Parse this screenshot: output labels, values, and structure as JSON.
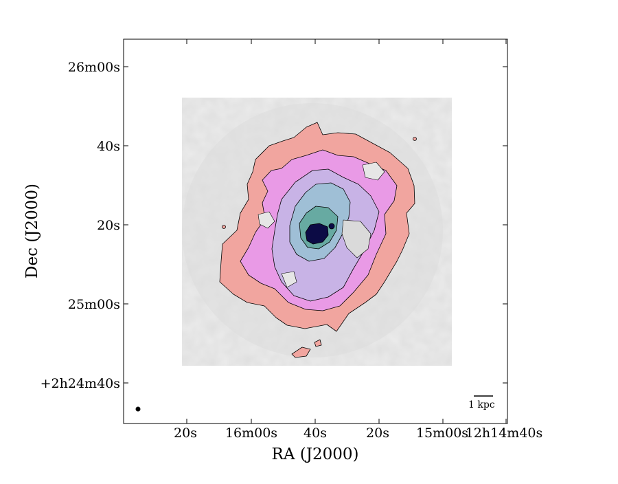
{
  "figure": {
    "x_axis_title": "RA (J2000)",
    "y_axis_title": "Dec (J2000)",
    "scalebar_label": "1 kpc",
    "x_ticks": [
      "20s",
      "16m00s",
      "40s",
      "20s",
      "15m00s",
      "12h14m40s"
    ],
    "y_ticks": [
      "26m00s",
      "40s",
      "20s",
      "25m00s",
      "+2h24m40s"
    ],
    "colors": {
      "outer_contour": "#f1a59f",
      "second_contour": "#e99ae6",
      "third_contour": "#c8b3e6",
      "fourth_contour": "#9fbfd6",
      "fifth_contour": "#67aaa2",
      "core": "#0c0b45",
      "background_gray": "#e8e8e8"
    },
    "beam_marker": "beam-dot"
  }
}
